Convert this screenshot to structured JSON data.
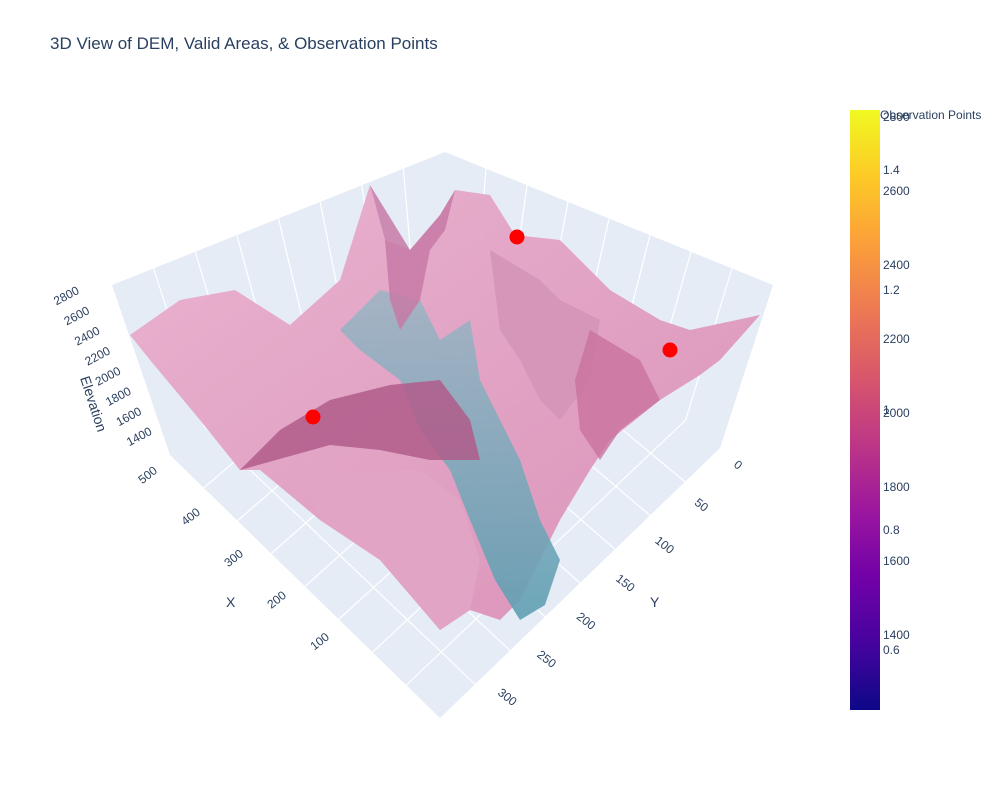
{
  "colors": {
    "surface": "#e6a3c4",
    "surface_dark": "#b04f86",
    "water": "#6fa9bb",
    "points": "#ff0000",
    "scene_bg": "#e5ecf6",
    "grid": "#ffffff",
    "text": "#2a3f5f"
  },
  "chart_data": {
    "type": "surface3d",
    "title": "3D View of DEM, Valid Areas, & Observation Points",
    "axes": {
      "x": {
        "label": "X",
        "ticks": [
          "100",
          "200",
          "300",
          "400",
          "500"
        ]
      },
      "y": {
        "label": "Y",
        "ticks": [
          "0",
          "50",
          "100",
          "150",
          "200",
          "250",
          "300"
        ]
      },
      "z": {
        "label": "Elevation",
        "ticks": [
          "1400",
          "1600",
          "1800",
          "2000",
          "2200",
          "2400",
          "2600",
          "2800"
        ],
        "range": [
          1300,
          2800
        ]
      }
    },
    "observation_points": [
      {
        "x": 300,
        "y": 0,
        "z": 2600
      },
      {
        "x": 0,
        "y": 100,
        "z": 2500
      },
      {
        "x": 470,
        "y": 180,
        "z": 2300
      }
    ],
    "colorbar": {
      "title": "Observation Points",
      "ticks_elevation": [
        "2800",
        "2600",
        "2400",
        "2200",
        "2000",
        "1800",
        "1600",
        "1400"
      ],
      "ticks_value": [
        "1.4",
        "1.2",
        "1",
        "0.8",
        "0.6"
      ],
      "scale": [
        "#0d0887",
        "#46039f",
        "#7201a8",
        "#9c179e",
        "#bd3786",
        "#d8576b",
        "#ed7953",
        "#fb9f3a",
        "#fdca26",
        "#f0f921"
      ]
    }
  }
}
